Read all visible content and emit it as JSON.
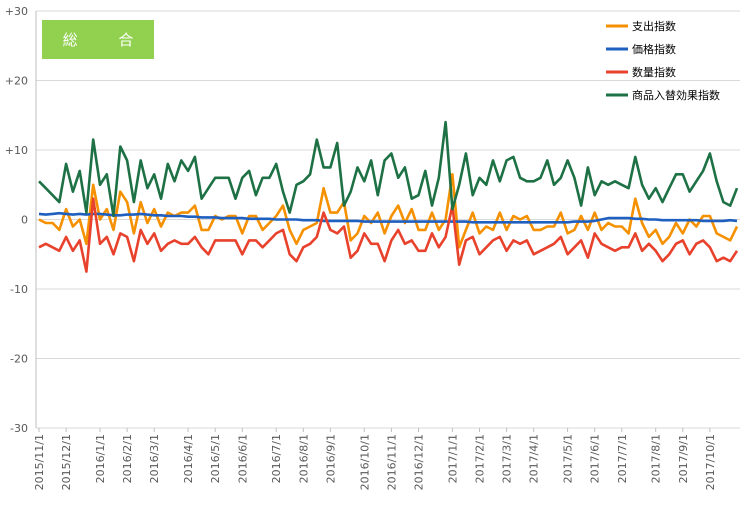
{
  "badge": {
    "label": "総 合",
    "color": "#92d050"
  },
  "chart_data": {
    "type": "line",
    "title": "",
    "xlabel": "",
    "ylabel": "",
    "ylim": [
      -30,
      30
    ],
    "yticks": [
      {
        "value": 30,
        "label": "+30"
      },
      {
        "value": 20,
        "label": "+20"
      },
      {
        "value": 10,
        "label": "+10"
      },
      {
        "value": 0,
        "label": "0"
      },
      {
        "value": -10,
        "label": "-10"
      },
      {
        "value": -20,
        "label": "-20"
      },
      {
        "value": -30,
        "label": "-30"
      }
    ],
    "grid": true,
    "legend_position": "top-right",
    "week_tick_labels": [
      {
        "week": 0,
        "label": "2015/11/1"
      },
      {
        "week": 4,
        "label": "2015/12/1"
      },
      {
        "week": 9,
        "label": "2016/1/1"
      },
      {
        "week": 13,
        "label": "2016/2/1"
      },
      {
        "week": 17,
        "label": "2016/3/1"
      },
      {
        "week": 22,
        "label": "2016/4/1"
      },
      {
        "week": 26,
        "label": "2016/5/1"
      },
      {
        "week": 30,
        "label": "2016/6/1"
      },
      {
        "week": 35,
        "label": "2016/7/1"
      },
      {
        "week": 39,
        "label": "2016/8/1"
      },
      {
        "week": 43,
        "label": "2016/9/1"
      },
      {
        "week": 48,
        "label": "2016/10/1"
      },
      {
        "week": 52,
        "label": "2016/11/1"
      },
      {
        "week": 56,
        "label": "2016/12/1"
      },
      {
        "week": 61,
        "label": "2017/1/1"
      },
      {
        "week": 65,
        "label": "2017/2/1"
      },
      {
        "week": 69,
        "label": "2017/3/1"
      },
      {
        "week": 73,
        "label": "2017/4/1"
      },
      {
        "week": 78,
        "label": "2017/5/1"
      },
      {
        "week": 82,
        "label": "2017/6/1"
      },
      {
        "week": 86,
        "label": "2017/7/1"
      },
      {
        "week": 91,
        "label": "2017/8/1"
      },
      {
        "week": 95,
        "label": "2017/9/1"
      },
      {
        "week": 99,
        "label": "2017/10/1"
      }
    ],
    "series": [
      {
        "name": "支出指数",
        "color": "#f59100",
        "values": [
          0,
          -0.5,
          -0.5,
          -1.5,
          1.5,
          -1,
          0,
          -3.5,
          5,
          0,
          1.5,
          -1.5,
          4,
          2.5,
          -2,
          2.5,
          -0.5,
          1.5,
          -1,
          1,
          0.5,
          1,
          1,
          2,
          -1.5,
          -1.5,
          0.5,
          0,
          0.5,
          0.5,
          -2,
          0.5,
          0.5,
          -1.5,
          -0.5,
          0.5,
          2,
          -1.5,
          -3.5,
          -1.5,
          -1,
          -0.5,
          4.5,
          1,
          1,
          2.5,
          -3,
          -2,
          0.5,
          -0.5,
          1,
          -2,
          0.5,
          2,
          -0.5,
          1.5,
          -1.5,
          -1.5,
          1,
          -1.5,
          0,
          6.5,
          -4,
          -1.5,
          1,
          -2,
          -1,
          -1.5,
          1,
          -1.5,
          0.5,
          0,
          0.5,
          -1.5,
          -1.5,
          -1,
          -1,
          1,
          -2,
          -1.5,
          0.5,
          -1.5,
          1,
          -1.5,
          -0.5,
          -1,
          -1,
          -2,
          3,
          -0.5,
          -2.5,
          -1.5,
          -3.5,
          -2.5,
          -0.5,
          -2,
          0,
          -1,
          0.5,
          0.5,
          -2,
          -2.5,
          -3,
          -1
        ]
      },
      {
        "name": "価格指数",
        "color": "#1f5fbf",
        "values": [
          0.8,
          0.7,
          0.8,
          0.9,
          0.8,
          0.7,
          0.8,
          0.7,
          0.8,
          0.8,
          0.7,
          0.6,
          0.6,
          0.7,
          0.7,
          0.8,
          0.7,
          0.6,
          0.6,
          0.5,
          0.5,
          0.5,
          0.4,
          0.4,
          0.3,
          0.3,
          0.3,
          0.2,
          0.2,
          0.2,
          0.2,
          0.1,
          0.1,
          0.1,
          0.1,
          0,
          0,
          0,
          0,
          -0.1,
          -0.1,
          -0.1,
          -0.2,
          -0.2,
          -0.2,
          -0.2,
          -0.2,
          -0.2,
          -0.3,
          -0.3,
          -0.3,
          -0.3,
          -0.3,
          -0.3,
          -0.3,
          -0.3,
          -0.3,
          -0.3,
          -0.3,
          -0.3,
          -0.3,
          -0.3,
          -0.3,
          -0.3,
          -0.4,
          -0.4,
          -0.4,
          -0.4,
          -0.4,
          -0.4,
          -0.4,
          -0.4,
          -0.4,
          -0.4,
          -0.4,
          -0.4,
          -0.4,
          -0.4,
          -0.4,
          -0.3,
          -0.3,
          -0.3,
          -0.2,
          0,
          0.2,
          0.2,
          0.2,
          0.2,
          0.1,
          0.1,
          0,
          0,
          -0.1,
          -0.1,
          -0.1,
          -0.1,
          -0.1,
          -0.1,
          -0.2,
          -0.2,
          -0.2,
          -0.2,
          -0.1,
          -0.2
        ]
      },
      {
        "name": "数量指数",
        "color": "#e8412c",
        "values": [
          -4,
          -3.5,
          -4,
          -4.5,
          -2.5,
          -4.5,
          -3,
          -7.5,
          3,
          -3.5,
          -2.5,
          -5,
          -2,
          -2.5,
          -6,
          -1.5,
          -3.5,
          -2,
          -4.5,
          -3.5,
          -3,
          -3.5,
          -3.5,
          -2.5,
          -4,
          -5,
          -3,
          -3,
          -3,
          -3,
          -5,
          -3,
          -3,
          -4,
          -3,
          -2,
          -1.5,
          -5,
          -6,
          -4,
          -3.5,
          -2.5,
          1,
          -1.5,
          -2,
          -1,
          -5.5,
          -4.5,
          -2,
          -3.5,
          -3.5,
          -6,
          -3,
          -1.5,
          -3.5,
          -3,
          -4.5,
          -4.5,
          -2,
          -4,
          -2.5,
          2,
          -6.5,
          -3,
          -2.5,
          -5,
          -4,
          -3,
          -2.5,
          -4.5,
          -3,
          -3.5,
          -3,
          -5,
          -4.5,
          -4,
          -3.5,
          -2.5,
          -5,
          -4,
          -3,
          -5.5,
          -2,
          -3.5,
          -4,
          -4.5,
          -4,
          -4,
          -2,
          -4.5,
          -3.5,
          -4.5,
          -6,
          -5,
          -3.5,
          -3,
          -5,
          -3.5,
          -3,
          -4,
          -6,
          -5.5,
          -6,
          -4.5
        ]
      },
      {
        "name": "商品入替効果指数",
        "color": "#1e7145",
        "values": [
          5.5,
          4.5,
          3.5,
          2.5,
          8,
          4,
          7,
          1,
          11.5,
          5,
          6.5,
          0.5,
          10.5,
          8.5,
          2.5,
          8.5,
          4.5,
          6.5,
          3,
          8,
          5.5,
          8.5,
          7,
          9,
          3,
          4.5,
          6,
          6,
          6,
          3,
          6,
          7,
          3.5,
          6,
          6,
          8,
          4,
          1,
          5,
          5.5,
          6.5,
          11.5,
          7.5,
          7.5,
          11,
          2,
          4,
          7.5,
          5.5,
          8.5,
          3.5,
          8.5,
          9.5,
          6,
          7.5,
          3,
          3.5,
          7,
          2,
          6,
          14,
          1.5,
          5,
          9.5,
          3.5,
          6,
          5,
          8.5,
          5.5,
          8.5,
          9,
          6,
          5.5,
          5.5,
          6,
          8.5,
          5,
          6,
          8.5,
          6,
          2,
          7.5,
          3.5,
          5.5,
          5,
          5.5,
          5,
          4.5,
          9,
          5,
          3,
          4.5,
          2.5,
          4.5,
          6.5,
          6.5,
          4,
          5.5,
          7,
          9.5,
          5.5,
          2.5,
          2,
          4.5
        ]
      }
    ]
  }
}
